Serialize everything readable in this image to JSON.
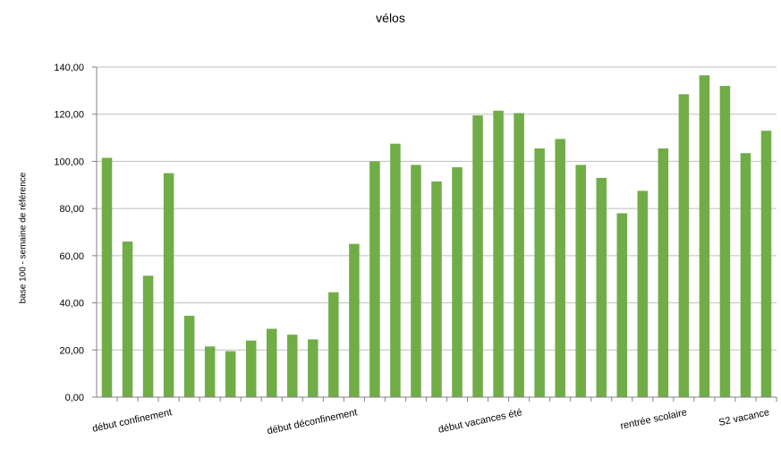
{
  "chart_data": {
    "type": "bar",
    "title": "vélos",
    "ylabel": "base 100 - semaine de référence",
    "xlabel": "",
    "ylim": [
      0,
      140
    ],
    "yticks": [
      "0,00",
      "20,00",
      "40,00",
      "60,00",
      "80,00",
      "100,00",
      "120,00",
      "140,00"
    ],
    "grid": true,
    "legend": "none",
    "bar_color": "#70ad47",
    "values": [
      101.5,
      66,
      51.5,
      95,
      34.5,
      21.5,
      19.5,
      24,
      29,
      26.5,
      24.5,
      44.5,
      65,
      100,
      107.5,
      98.5,
      91.5,
      97.5,
      119.5,
      121.5,
      120.5,
      105.5,
      109.5,
      98.5,
      93,
      78,
      87.5,
      105.5,
      128.5,
      136.5,
      132,
      103.5,
      113
    ],
    "category_labels": [
      {
        "index": 3,
        "text": "début confinement"
      },
      {
        "index": 12,
        "text": "début déconfinement"
      },
      {
        "index": 20,
        "text": "début vacances été"
      },
      {
        "index": 28,
        "text": "rentrée scolaire"
      },
      {
        "index": 32,
        "text": "S2 vacance"
      }
    ]
  }
}
